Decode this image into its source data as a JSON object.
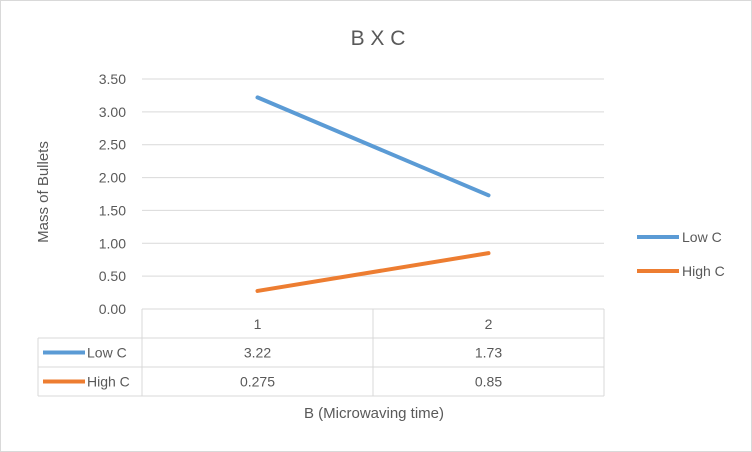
{
  "chart_data": {
    "type": "line",
    "title": "B X C",
    "xlabel": "B (Microwaving time)",
    "ylabel": "Mass of Bullets",
    "categories": [
      "1",
      "2"
    ],
    "ylim": [
      0,
      3.5
    ],
    "ytick_labels": [
      "0.00",
      "0.50",
      "1.00",
      "1.50",
      "2.00",
      "2.50",
      "3.00",
      "3.50"
    ],
    "grid": true,
    "legend": "right",
    "data_table": true,
    "series": [
      {
        "name": "Low C",
        "values": [
          3.22,
          1.73
        ],
        "labels": [
          "3.22",
          "1.73"
        ],
        "color": "#5b9bd5"
      },
      {
        "name": "High C",
        "values": [
          0.275,
          0.85
        ],
        "labels": [
          "0.275",
          "0.85"
        ],
        "color": "#ed7d31"
      }
    ]
  }
}
